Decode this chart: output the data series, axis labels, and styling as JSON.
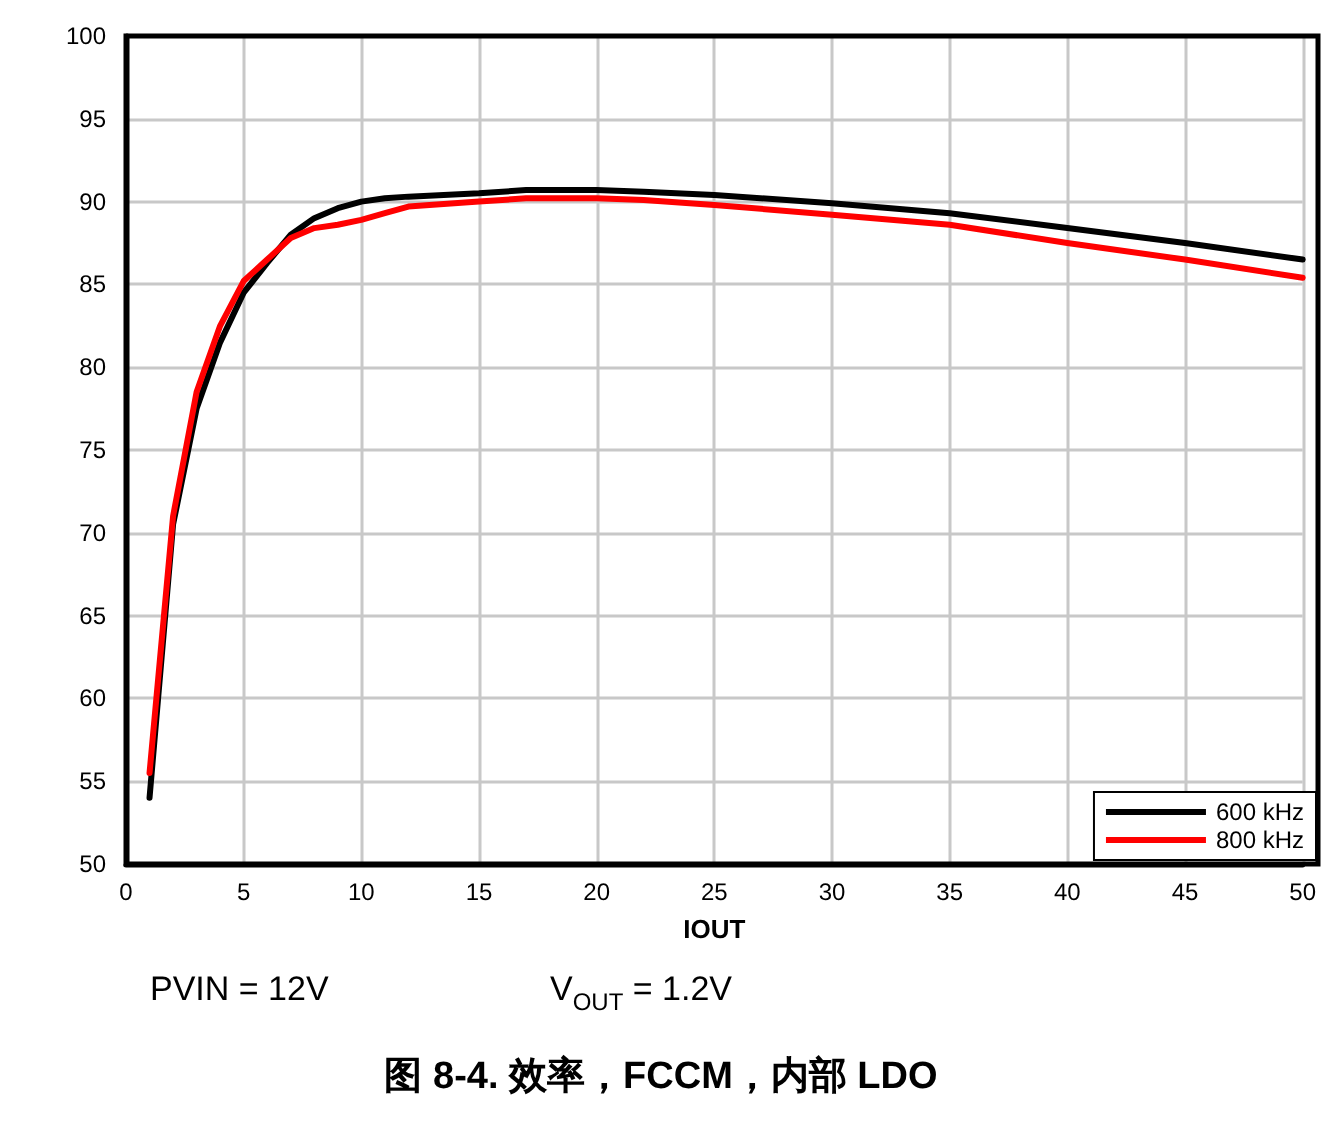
{
  "chart_data": {
    "type": "line",
    "title": "图 8-4. 效率，FCCM，内部 LDO",
    "xlabel": "IOUT",
    "annotations": [
      "PVIN = 12V",
      "V$_{OUT}$ = 1.2V"
    ],
    "x": [
      1,
      2,
      3,
      4,
      5,
      6,
      7,
      8,
      9,
      10,
      11,
      12,
      15,
      17,
      20,
      22,
      25,
      30,
      35,
      40,
      45,
      50
    ],
    "series": [
      {
        "name": "600 kHz",
        "color": "#000000",
        "values": [
          54,
          70.5,
          77.5,
          81.5,
          84.5,
          86.3,
          88,
          89,
          89.6,
          90,
          90.2,
          90.3,
          90.5,
          90.7,
          90.7,
          90.6,
          90.4,
          89.9,
          89.3,
          88.4,
          87.5,
          86.5
        ]
      },
      {
        "name": "800 kHz",
        "color": "#ff0000",
        "values": [
          55.5,
          71,
          78.5,
          82.5,
          85.2,
          86.5,
          87.8,
          88.4,
          88.6,
          88.9,
          89.3,
          89.7,
          90,
          90.2,
          90.2,
          90.1,
          89.8,
          89.2,
          88.6,
          87.5,
          86.5,
          85.4
        ]
      }
    ],
    "xlim": [
      0,
      50
    ],
    "xticks": [
      0,
      5,
      10,
      15,
      20,
      25,
      30,
      35,
      40,
      45,
      50
    ],
    "ylim": [
      50,
      100
    ],
    "yticks": [
      50,
      55,
      60,
      65,
      70,
      75,
      80,
      85,
      90,
      95,
      100
    ],
    "grid": true,
    "legend": "bottom right",
    "marker": "none",
    "line_style": "solid"
  }
}
